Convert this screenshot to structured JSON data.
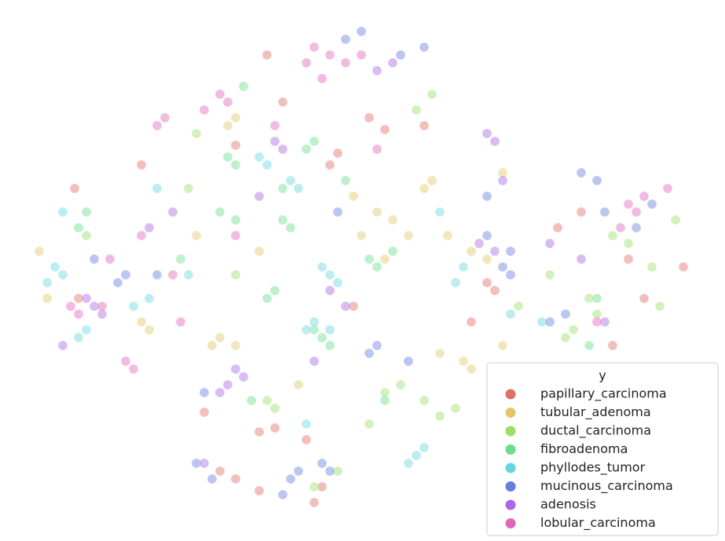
{
  "chart_data": {
    "type": "scatter",
    "xlim": [
      0,
      92.3
    ],
    "ylim": [
      0,
      68.9
    ],
    "legend_title": "y",
    "legend": "lower right",
    "series": [
      {
        "name": "papillary_carcinoma",
        "color": "#db5f57",
        "x": [
          40,
          41,
          35,
          28,
          30,
          33,
          62,
          63,
          80,
          78,
          34,
          36,
          43,
          18,
          9.5,
          60,
          87,
          54,
          47,
          26,
          33,
          39,
          10,
          45,
          74,
          71,
          49,
          42,
          30,
          82
        ],
        "y": [
          4.9,
          6.9,
          14.4,
          8.9,
          7.9,
          6.4,
          32.9,
          31.9,
          35.9,
          24.9,
          61.9,
          55.9,
          49.4,
          47.9,
          44.9,
          27.9,
          34.9,
          52.9,
          53.9,
          16.4,
          13.9,
          12.9,
          30.9,
          29.9,
          41.9,
          39.9,
          52.4,
          47.9,
          50.4,
          30.9
        ]
      },
      {
        "name": "tubular_adenoma",
        "color": "#dbc257",
        "x": [
          48,
          50,
          52,
          49,
          56,
          59,
          60,
          28,
          30,
          27,
          18,
          19,
          60,
          62,
          57,
          30,
          29,
          64,
          54,
          55,
          46,
          33,
          5,
          6,
          38,
          45,
          64,
          25
        ],
        "y": [
          41.9,
          40.9,
          38.9,
          35.9,
          23.9,
          22.9,
          21.9,
          25.9,
          24.9,
          24.9,
          27.9,
          26.9,
          36.9,
          35.9,
          38.9,
          53.9,
          52.9,
          46.9,
          44.9,
          45.9,
          38.9,
          36.9,
          36.9,
          30.9,
          19.9,
          43.9,
          24.9,
          38.9
        ]
      },
      {
        "name": "ductal_carcinoma",
        "color": "#91db57",
        "x": [
          49,
          51,
          54,
          56,
          58,
          34,
          35,
          75,
          76,
          73,
          72,
          78,
          80,
          83,
          84,
          40,
          43,
          30,
          24,
          55,
          53,
          11,
          25,
          86,
          66,
          47,
          70
        ],
        "y": [
          18.9,
          19.9,
          17.9,
          15.9,
          16.9,
          17.9,
          16.9,
          30.9,
          28.9,
          26.9,
          25.9,
          38.9,
          37.9,
          34.9,
          29.9,
          6.9,
          8.9,
          33.9,
          44.9,
          56.9,
          54.9,
          38.9,
          51.9,
          40.9,
          29.9,
          14.9,
          33.9
        ]
      },
      {
        "name": "fibroadenoma",
        "color": "#57db80",
        "x": [
          29,
          30,
          28,
          30,
          36,
          37,
          47,
          48,
          50,
          34,
          35,
          40,
          41,
          11,
          10,
          39,
          40,
          31,
          49,
          32,
          75,
          76,
          23,
          42,
          44,
          36
        ],
        "y": [
          48.9,
          47.9,
          41.9,
          40.9,
          40.9,
          39.9,
          35.9,
          34.9,
          36.9,
          30.9,
          31.9,
          26.9,
          25.9,
          41.9,
          39.9,
          49.9,
          50.9,
          57.9,
          17.9,
          17.9,
          24.9,
          30.9,
          35.9,
          24.9,
          45.9,
          44.9
        ]
      },
      {
        "name": "phyllodes_tumor",
        "color": "#57d3db",
        "x": [
          42,
          43,
          41,
          40,
          39,
          42,
          33,
          34,
          37,
          38,
          7,
          8,
          6,
          11,
          10,
          17,
          19,
          24,
          53,
          52,
          54,
          59,
          58,
          65,
          69,
          39,
          8,
          20,
          56
        ],
        "y": [
          33.9,
          32.9,
          34.9,
          27.9,
          26.9,
          26.9,
          48.9,
          47.9,
          45.9,
          44.9,
          34.9,
          33.9,
          32.9,
          26.9,
          25.9,
          29.9,
          30.9,
          33.9,
          10.9,
          9.9,
          11.9,
          34.9,
          32.9,
          28.9,
          27.9,
          14.9,
          41.9,
          44.9,
          41.9
        ]
      },
      {
        "name": "mucinous_carcinoma",
        "color": "#5770db",
        "x": [
          37,
          36,
          38,
          41,
          42,
          25,
          27,
          48,
          47,
          52,
          64,
          65,
          62,
          74,
          76,
          72,
          70,
          16,
          15,
          20,
          44,
          46,
          51,
          54,
          83,
          81,
          26,
          43,
          62,
          65,
          77,
          12
        ],
        "y": [
          7.9,
          5.9,
          8.9,
          9.9,
          8.9,
          9.9,
          7.9,
          24.9,
          23.9,
          22.9,
          34.9,
          33.9,
          38.9,
          46.9,
          45.9,
          28.9,
          27.9,
          33.9,
          32.9,
          33.9,
          63.9,
          64.9,
          61.9,
          62.9,
          42.9,
          39.9,
          18.9,
          41.9,
          43.9,
          36.9,
          41.9,
          35.9
        ]
      },
      {
        "name": "adenosis",
        "color": "#a157db",
        "x": [
          30,
          31,
          29,
          12,
          13,
          11,
          35,
          36,
          62,
          63,
          61,
          63,
          28,
          42,
          44,
          77,
          74,
          22,
          19,
          40,
          50,
          48,
          64,
          8,
          33,
          70,
          26
        ],
        "y": [
          21.9,
          20.9,
          19.9,
          29.9,
          28.9,
          30.9,
          50.9,
          49.9,
          51.9,
          50.9,
          37.9,
          36.9,
          18.9,
          31.9,
          29.9,
          27.9,
          35.9,
          41.9,
          39.9,
          22.9,
          60.9,
          59.9,
          45.9,
          24.9,
          43.9,
          37.9,
          9.9
        ]
      },
      {
        "name": "lobular_carcinoma",
        "color": "#db57b2",
        "x": [
          40,
          42,
          39,
          44,
          46,
          41,
          80,
          81,
          79,
          82,
          9,
          10,
          13,
          16,
          17,
          21,
          20,
          28,
          29,
          26,
          76,
          30,
          18,
          23,
          48,
          35,
          85,
          14,
          22
        ],
        "y": [
          62.9,
          61.9,
          60.9,
          60.9,
          61.9,
          58.9,
          42.9,
          41.9,
          39.9,
          43.9,
          29.9,
          28.9,
          29.9,
          22.9,
          21.9,
          53.9,
          52.9,
          56.9,
          55.9,
          54.9,
          27.9,
          38.9,
          38.9,
          27.9,
          49.9,
          52.9,
          44.9,
          35.9,
          33.9
        ]
      }
    ]
  }
}
